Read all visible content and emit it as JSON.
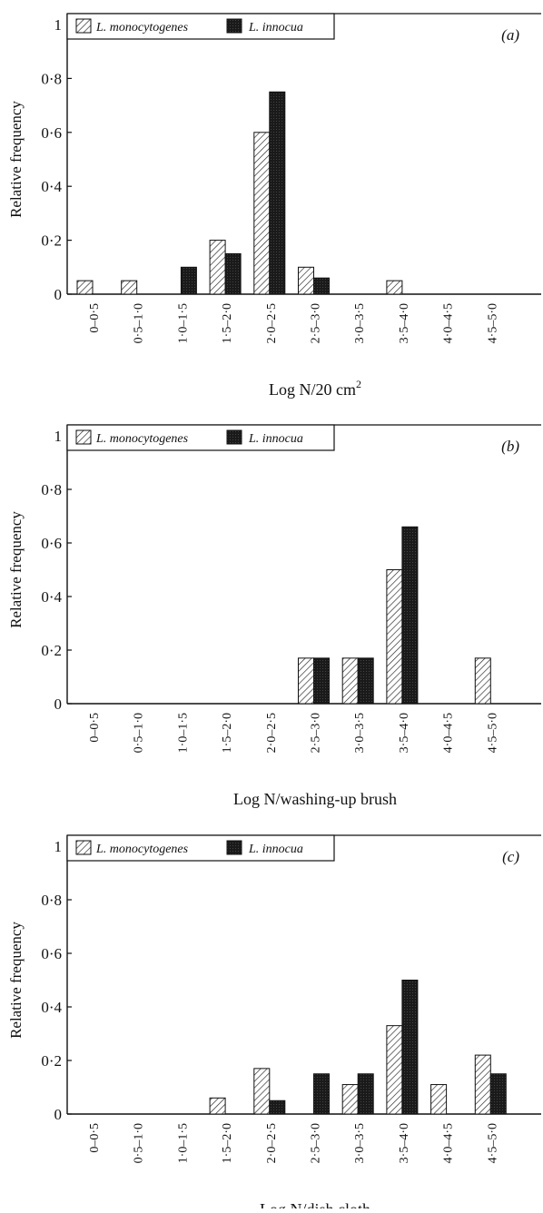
{
  "chart_data": [
    {
      "type": "bar",
      "panel_label": "(a)",
      "categories": [
        "0–0·5",
        "0·5–1·0",
        "1·0–1·5",
        "1·5–2·0",
        "2·0–2·5",
        "2·5–3·0",
        "3·0–3·5",
        "3·5–4·0",
        "4·0–4·5",
        "4·5–5·0"
      ],
      "series": [
        {
          "name": "L. monocytogenes",
          "values": [
            0.05,
            0.05,
            0,
            0.2,
            0.6,
            0.1,
            0,
            0.05,
            0,
            0
          ],
          "pattern": "hatched"
        },
        {
          "name": "L. innocua",
          "values": [
            0,
            0,
            0.1,
            0.15,
            0.75,
            0.06,
            0,
            0,
            0,
            0
          ],
          "pattern": "solid"
        }
      ],
      "xlabel": "Log N/20 cm",
      "xlabel_sup": "2",
      "ylabel": "Relative frequency",
      "ylim": [
        0,
        1
      ],
      "yticks": [
        "0",
        "0·2",
        "0·4",
        "0·6",
        "0·8",
        "1"
      ],
      "legend": "top-left"
    },
    {
      "type": "bar",
      "panel_label": "(b)",
      "categories": [
        "0–0·5",
        "0·5–1·0",
        "1·0–1·5",
        "1·5–2·0",
        "2·0–2·5",
        "2·5–3·0",
        "3·0–3·5",
        "3·5–4·0",
        "4·0–4·5",
        "4·5–5·0"
      ],
      "series": [
        {
          "name": "L. monocytogenes",
          "values": [
            0,
            0,
            0,
            0,
            0,
            0.17,
            0.17,
            0.5,
            0,
            0.17
          ],
          "pattern": "hatched"
        },
        {
          "name": "L. innocua",
          "values": [
            0,
            0,
            0,
            0,
            0,
            0.17,
            0.17,
            0.66,
            0,
            0
          ],
          "pattern": "solid"
        }
      ],
      "xlabel": "Log N/washing-up brush",
      "xlabel_sup": "",
      "ylabel": "Relative frequency",
      "ylim": [
        0,
        1
      ],
      "yticks": [
        "0",
        "0·2",
        "0·4",
        "0·6",
        "0·8",
        "1"
      ],
      "legend": "top-left"
    },
    {
      "type": "bar",
      "panel_label": "(c)",
      "categories": [
        "0–0·5",
        "0·5–1·0",
        "1·0–1·5",
        "1·5–2·0",
        "2·0–2·5",
        "2·5–3·0",
        "3·0–3·5",
        "3·5–4·0",
        "4·0–4·5",
        "4·5–5·0"
      ],
      "series": [
        {
          "name": "L. monocytogenes",
          "values": [
            0,
            0,
            0,
            0.06,
            0.17,
            0,
            0.11,
            0.33,
            0.11,
            0.22
          ],
          "pattern": "hatched"
        },
        {
          "name": "L. innocua",
          "values": [
            0,
            0,
            0,
            0,
            0.05,
            0.15,
            0.15,
            0.5,
            0,
            0.15
          ],
          "pattern": "solid"
        }
      ],
      "xlabel": "Log N/dish cloth",
      "xlabel_sup": "",
      "ylabel": "Relative frequency",
      "ylim": [
        0,
        1
      ],
      "yticks": [
        "0",
        "0·2",
        "0·4",
        "0·6",
        "0·8",
        "1"
      ],
      "legend": "top-left"
    }
  ],
  "colors": {
    "axis": "#111111",
    "solid_bar": "#1a1a1a",
    "hatch_line": "#222222",
    "background": "#ffffff"
  }
}
